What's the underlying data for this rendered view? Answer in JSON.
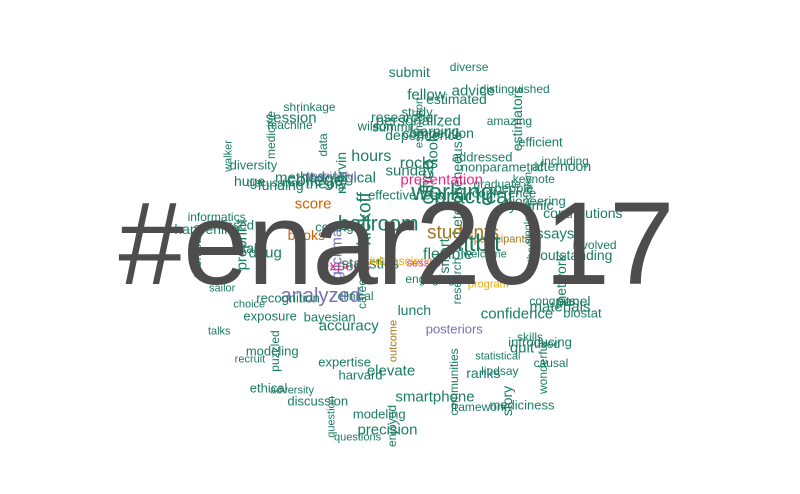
{
  "colors": {
    "teal": "#1b7d63",
    "orange": "#d95f02",
    "purple": "#7570b3",
    "pink": "#e7298a",
    "olive": "#66a61e",
    "gold": "#e6ab02",
    "brown": "#a6761d",
    "gray": "#4d4d4d"
  },
  "cloud": {
    "primary": "#enar2017",
    "words": [
      "pioneering",
      "methodological",
      "sailor",
      "analyzed",
      "mediciness",
      "distinguished",
      "lunch",
      "used",
      "puzzled",
      "personalized",
      "medicine",
      "confidence",
      "precision",
      "quit",
      "discussions",
      "smartphone",
      "diverse",
      "theory",
      "elevate",
      "meaningful",
      "efficient",
      "communities",
      "shrinkage",
      "estimators",
      "expertise",
      "participants",
      "happening",
      "question",
      "graduate",
      "discussion",
      "competition",
      "decision",
      "exposure",
      "heterogeneous",
      "biostat",
      "posteriors",
      "score",
      "office",
      "hours",
      "contributions",
      "career",
      "framework",
      "modeling",
      "network",
      "congrats",
      "preprint",
      "introducing",
      "college",
      "ranks",
      "questions",
      "experts",
      "rocks",
      "recognition",
      "fitbit",
      "bayesian",
      "marvin",
      "doug",
      "dependence",
      "statistics",
      "talks",
      "lindsay",
      "glickman",
      "advice",
      "tools",
      "single",
      "ballroom",
      "harvard",
      "walker",
      "data",
      "kickoff",
      "session",
      "materials",
      "students",
      "machine",
      "flexible",
      "research",
      "statistical",
      "summit",
      "conference",
      "clinical",
      "presentation",
      "wilson",
      "outstanding",
      "#datascience",
      "wonderful",
      "informatics",
      "engaging",
      "involved",
      "choice",
      "afternoon",
      "sunday",
      "practical",
      "amazing",
      "huge",
      "effectiveness",
      "accuracy",
      "skills",
      "enjoyed",
      "ethical",
      "missed",
      "estimation",
      "outcome",
      "adversity",
      "nonparametric",
      "study",
      "fellow",
      "recruit",
      "program",
      "causal",
      "coding",
      "estimated",
      "dynamic",
      "submit",
      "session",
      "thanks",
      "including",
      "diversity",
      "talk",
      "panel",
      "keynote",
      "smart",
      "books",
      "people",
      "learning",
      "addressed",
      "welcome",
      "promotion",
      "researcher",
      "story",
      "modeling",
      "assays",
      "funding",
      "working"
    ]
  }
}
